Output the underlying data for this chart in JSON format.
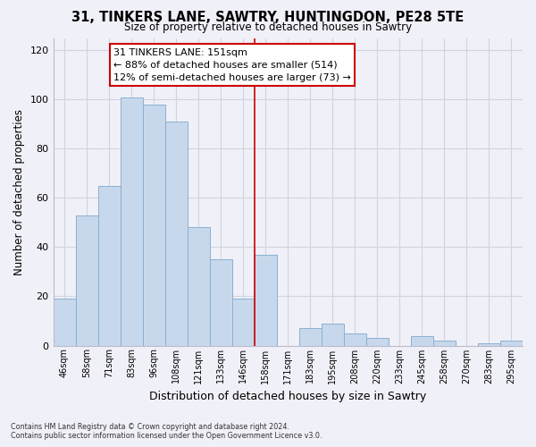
{
  "title": "31, TINKERS LANE, SAWTRY, HUNTINGDON, PE28 5TE",
  "subtitle": "Size of property relative to detached houses in Sawtry",
  "xlabel": "Distribution of detached houses by size in Sawtry",
  "ylabel": "Number of detached properties",
  "categories": [
    "46sqm",
    "58sqm",
    "71sqm",
    "83sqm",
    "96sqm",
    "108sqm",
    "121sqm",
    "133sqm",
    "146sqm",
    "158sqm",
    "171sqm",
    "183sqm",
    "195sqm",
    "208sqm",
    "220sqm",
    "233sqm",
    "245sqm",
    "258sqm",
    "270sqm",
    "283sqm",
    "295sqm"
  ],
  "values": [
    19,
    53,
    65,
    101,
    98,
    91,
    48,
    35,
    19,
    37,
    0,
    7,
    9,
    5,
    3,
    0,
    4,
    2,
    0,
    1,
    2
  ],
  "bar_color": "#c8d8ec",
  "bar_edge_color": "#8ab0d0",
  "highlight_line_color": "#cc0000",
  "annotation_text_line1": "31 TINKERS LANE: 151sqm",
  "annotation_text_line2": "← 88% of detached houses are smaller (514)",
  "annotation_text_line3": "12% of semi-detached houses are larger (73) →",
  "ylim": [
    0,
    125
  ],
  "yticks": [
    0,
    20,
    40,
    60,
    80,
    100,
    120
  ],
  "footer_line1": "Contains HM Land Registry data © Crown copyright and database right 2024.",
  "footer_line2": "Contains public sector information licensed under the Open Government Licence v3.0.",
  "bg_color": "#f0f0f8",
  "grid_color": "#d0d4e0"
}
